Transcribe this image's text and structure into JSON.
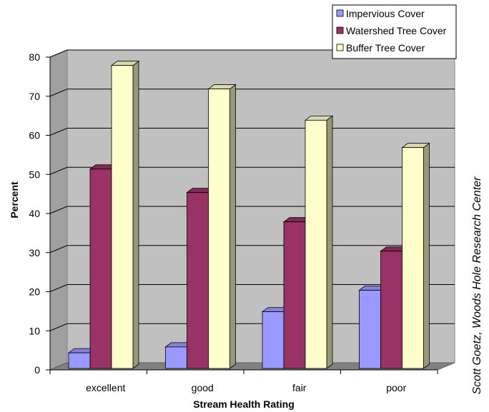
{
  "chart_data": {
    "type": "bar",
    "categories": [
      "excellent",
      "good",
      "fair",
      "poor"
    ],
    "series": [
      {
        "name": "Impervious Cover",
        "values": [
          4,
          5.5,
          14.5,
          20
        ],
        "color": "#9999ff"
      },
      {
        "name": "Watershed Tree Cover",
        "values": [
          51,
          45,
          37.5,
          30
        ],
        "color": "#993366"
      },
      {
        "name": "Buffer Tree Cover",
        "values": [
          77.5,
          71.5,
          63.5,
          56.5
        ],
        "color": "#ffffcc"
      }
    ],
    "title": "",
    "xlabel": "Stream Health Rating",
    "ylabel": "Percent",
    "ylim": [
      0,
      80
    ],
    "yticks": [
      "0",
      "10",
      "20",
      "30",
      "40",
      "50",
      "60",
      "70",
      "80"
    ],
    "grid": true,
    "legend_position": "top-right",
    "wall_color": "#c0c0c0",
    "floor_color": "#808080",
    "credit": "Scott Goetz, Woods Hole Research Center"
  }
}
